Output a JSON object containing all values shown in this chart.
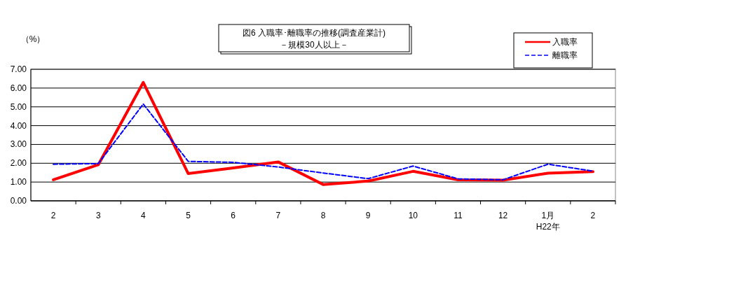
{
  "chart_data": {
    "type": "line",
    "title": "図6  入職率･離職率の推移(調査産業計)",
    "subtitle": "－規模30人以上－",
    "ylabel": "（%）",
    "categories": [
      "2",
      "3",
      "4",
      "5",
      "6",
      "7",
      "8",
      "9",
      "10",
      "11",
      "12",
      "1月\nH22年",
      "2"
    ],
    "series": [
      {
        "name": "入職率",
        "color": "#ff0000",
        "line_style": "solid",
        "values": [
          1.12,
          1.92,
          6.3,
          1.45,
          1.75,
          2.07,
          0.87,
          1.05,
          1.57,
          1.12,
          1.1,
          1.47,
          1.55
        ]
      },
      {
        "name": "離職率",
        "color": "#0000ff",
        "line_style": "dashed",
        "values": [
          1.95,
          1.98,
          5.15,
          2.1,
          2.05,
          1.8,
          1.48,
          1.18,
          1.85,
          1.17,
          1.12,
          1.95,
          1.58
        ]
      }
    ],
    "ylim": [
      0,
      7
    ],
    "yticks": [
      {
        "value": 0,
        "label": "0.00"
      },
      {
        "value": 1,
        "label": "1.00"
      },
      {
        "value": 2,
        "label": "2.00"
      },
      {
        "value": 3,
        "label": "3.00"
      },
      {
        "value": 4,
        "label": "4.00"
      },
      {
        "value": 5,
        "label": "5.00"
      },
      {
        "value": 6,
        "label": "6.00"
      },
      {
        "value": 7,
        "label": "7.00"
      }
    ],
    "grid": "y",
    "legend": "top right"
  }
}
